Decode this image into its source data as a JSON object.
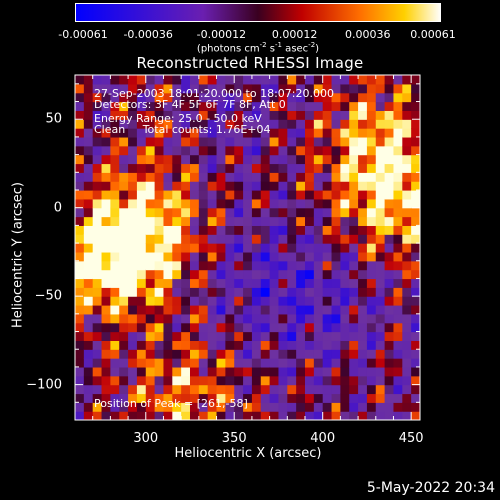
{
  "colorbar": {
    "ticks": [
      "-0.00061",
      "-0.00036",
      "-0.00012",
      "0.00012",
      "0.00036",
      "0.00061"
    ],
    "unit_base": "(photons cm",
    "unit_exp1": "-2",
    "unit_mid": " s",
    "unit_exp2": "-1",
    "unit_mid2": " asec",
    "unit_exp3": "-2",
    "unit_end": ")"
  },
  "info": {
    "line1": "27-Sep-2003 18:01:20.000 to 18:07:20.000",
    "line2": "Detectors: 3F 4F 5F 6F 7F 8F, Att 0",
    "line3": "Energy Range: 25.0 - 50.0 keV",
    "line4": "Clean     Total counts: 1.76E+04",
    "peak": "Position of Peak = [261,-58]"
  },
  "timestamp": "5-May-2022 20:34",
  "chart_data": {
    "type": "heatmap",
    "title": "Reconstructed RHESSI Image",
    "xlabel": "Heliocentric X (arcsec)",
    "ylabel": "Heliocentric Y (arcsec)",
    "xlim": [
      260,
      455
    ],
    "ylim": [
      -120,
      75
    ],
    "xticks": [
      300,
      350,
      400,
      450
    ],
    "yticks": [
      50,
      0,
      -50,
      -100
    ],
    "colorbar_range": [
      -0.00061,
      0.00061
    ],
    "colormap": "blue-purple-red-yellow-white",
    "peak_position": [
      261,
      -58
    ],
    "bright_regions": [
      {
        "x": 280,
        "y": -30,
        "level": 0.00061
      },
      {
        "x": 300,
        "y": -10,
        "level": 0.0005
      },
      {
        "x": 440,
        "y": 5,
        "level": 0.0005
      },
      {
        "x": 430,
        "y": 40,
        "level": 0.0004
      },
      {
        "x": 320,
        "y": 50,
        "level": 0.0003
      },
      {
        "x": 320,
        "y": -105,
        "level": 0.00035
      }
    ],
    "dark_regions": [
      {
        "x": 330,
        "y": 50,
        "level": -0.0003
      },
      {
        "x": 365,
        "y": -40,
        "level": -0.0002
      },
      {
        "x": 400,
        "y": -55,
        "level": -0.0002
      }
    ]
  }
}
